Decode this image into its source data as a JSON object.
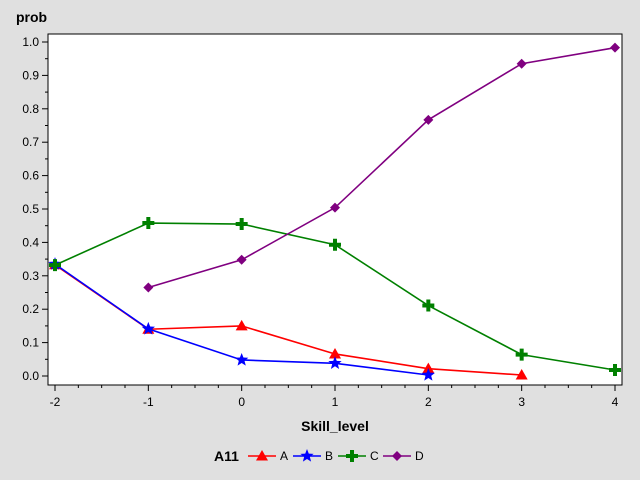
{
  "chart_data": {
    "type": "line",
    "xlabel": "Skill_level",
    "ylabel": "prob",
    "xlim": [
      -2,
      4
    ],
    "ylim": [
      0,
      1
    ],
    "x_ticks": [
      "-2",
      "-1",
      "0",
      "1",
      "2",
      "3",
      "4"
    ],
    "y_ticks": [
      "0.0",
      "0.1",
      "0.2",
      "0.3",
      "0.4",
      "0.5",
      "0.6",
      "0.7",
      "0.8",
      "0.9",
      "1.0"
    ],
    "legend": {
      "title": "A11",
      "position": "bottom"
    },
    "grid": false,
    "series": [
      {
        "name": "A",
        "color": "#ff0000",
        "marker": "triangle",
        "points": [
          [
            -2,
            0.333
          ],
          [
            -1,
            0.14
          ],
          [
            0,
            0.15
          ],
          [
            1,
            0.066
          ],
          [
            2,
            0.022
          ],
          [
            3,
            0.003
          ]
        ]
      },
      {
        "name": "B",
        "color": "#0000ff",
        "marker": "star",
        "points": [
          [
            -2,
            0.335
          ],
          [
            -1,
            0.141
          ],
          [
            0,
            0.048
          ],
          [
            1,
            0.038
          ],
          [
            2,
            0.003
          ]
        ]
      },
      {
        "name": "C",
        "color": "#008000",
        "marker": "plus",
        "points": [
          [
            -2,
            0.332
          ],
          [
            -1,
            0.458
          ],
          [
            0,
            0.455
          ],
          [
            1,
            0.393
          ],
          [
            2,
            0.211
          ],
          [
            3,
            0.064
          ],
          [
            4,
            0.018
          ]
        ]
      },
      {
        "name": "D",
        "color": "#800080",
        "marker": "diamond",
        "points": [
          [
            -1,
            0.265
          ],
          [
            0,
            0.348
          ],
          [
            1,
            0.504
          ],
          [
            2,
            0.767
          ],
          [
            3,
            0.935
          ],
          [
            4,
            0.983
          ]
        ]
      }
    ]
  }
}
